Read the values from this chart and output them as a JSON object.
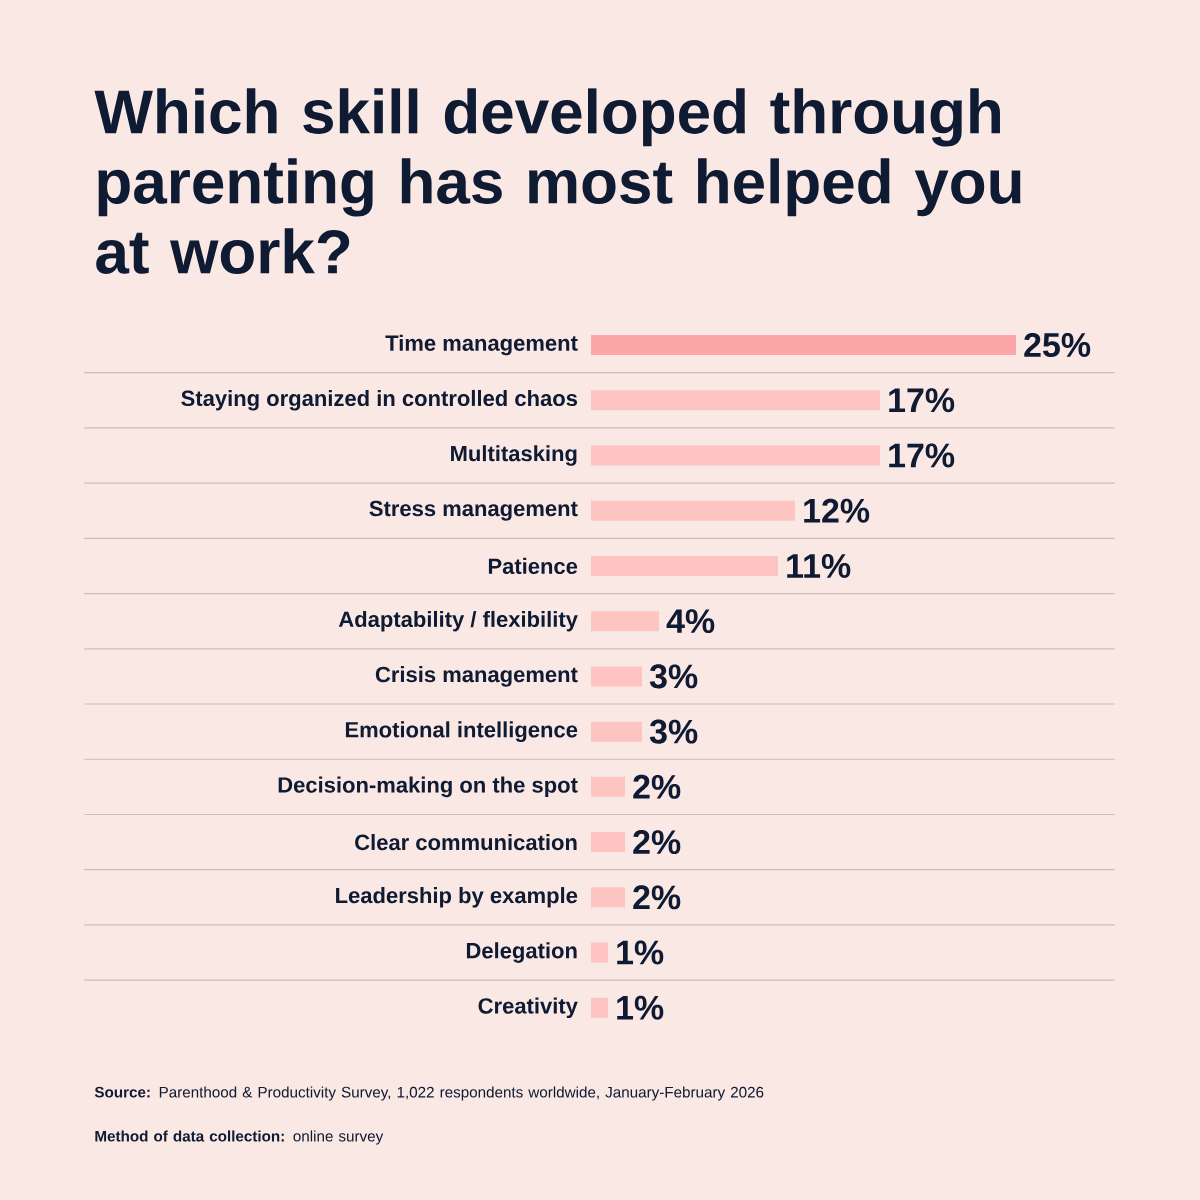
{
  "chart_data": {
    "type": "bar",
    "orientation": "horizontal",
    "title": "Which skill developed through parenting has most helped you at work?",
    "categories": [
      "Time management",
      "Staying organized in controlled chaos",
      "Multitasking",
      "Stress management",
      "Patience",
      "Adaptability / flexibility",
      "Crisis management",
      "Emotional intelligence",
      "Decision-making on the spot",
      "Clear communication",
      "Leadership by example",
      "Delegation",
      "Creativity"
    ],
    "values": [
      25,
      17,
      17,
      12,
      11,
      4,
      3,
      3,
      2,
      2,
      2,
      1,
      1
    ],
    "value_labels": [
      "25%",
      "17%",
      "17%",
      "12%",
      "11%",
      "4%",
      "3%",
      "3%",
      "2%",
      "2%",
      "2%",
      "1%",
      "1%"
    ],
    "colors": [
      "#fba7a7",
      "#fdc4c2",
      "#fdc4c2",
      "#fdc4c2",
      "#fdc4c2",
      "#fdc4c2",
      "#fdc4c2",
      "#fdc4c2",
      "#fdc4c2",
      "#fdc4c2",
      "#fdc4c2",
      "#fdc4c2",
      "#fdc4c2"
    ],
    "tick_labels": "y",
    "annotations": [
      "**Source:** Parenthood & Productivity Survey, 1,022 respondents worldwide, January-February 2026",
      "**Method of data collection:** online survey"
    ]
  }
}
